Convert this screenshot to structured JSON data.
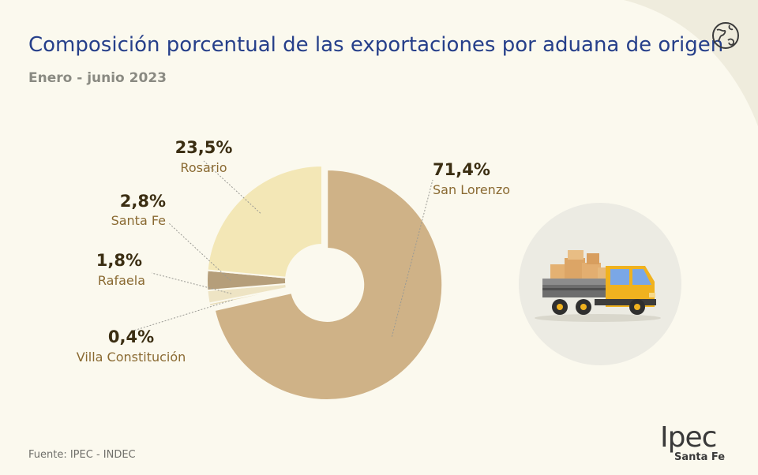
{
  "header": {
    "title": "Composición porcentual de las exportaciones por aduana de origen",
    "subtitle": "Enero - junio 2023"
  },
  "chart_data": {
    "type": "pie",
    "variant": "donut",
    "slices": [
      {
        "label": "San Lorenzo",
        "value": 71.4,
        "display": "71,4%",
        "color": "#cfb287"
      },
      {
        "label": "Villa Constitución",
        "value": 0.4,
        "display": "0,4%",
        "color": "#e8dcb8"
      },
      {
        "label": "Rafaela",
        "value": 1.8,
        "display": "1,8%",
        "color": "#eee4c4"
      },
      {
        "label": "Santa Fe",
        "value": 2.8,
        "display": "2,8%",
        "color": "#b59e7a"
      },
      {
        "label": "Rosario",
        "value": 23.5,
        "display": "23,5%",
        "color": "#f3e7b6"
      }
    ],
    "legend": "none"
  },
  "footer": {
    "source": "Fuente: IPEC - INDEC",
    "logo_text": "Ipec",
    "logo_subtext": "Santa Fe"
  },
  "icons": {
    "globe": "globe-icon",
    "truck": "delivery-truck-icon"
  },
  "colors": {
    "title": "#263f8a",
    "background": "#fbf9ee",
    "accent_arc": "#f1efe2"
  }
}
